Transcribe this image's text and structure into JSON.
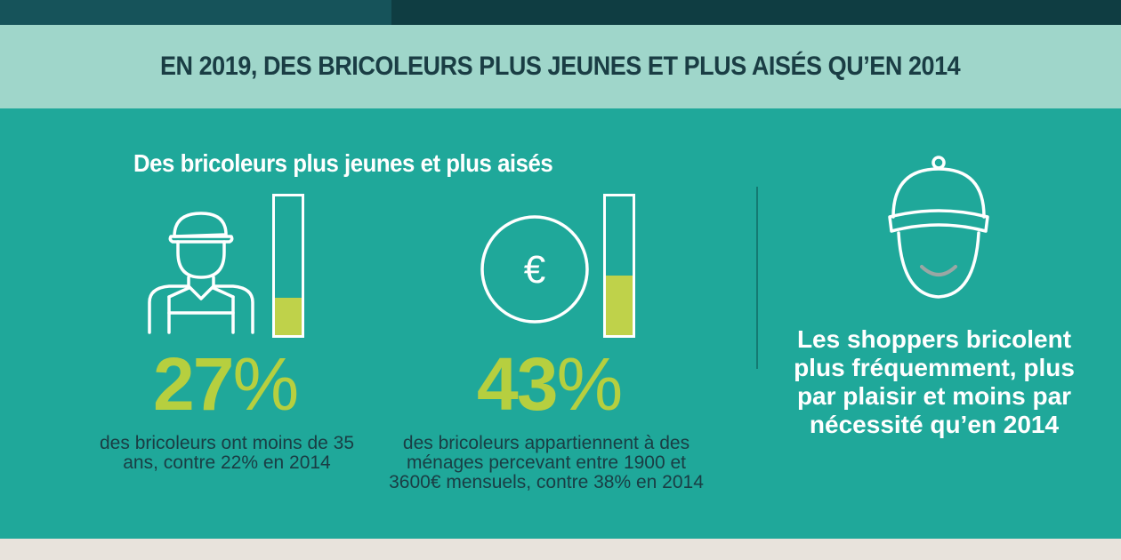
{
  "header": {
    "title": "EN 2019, DES BRICOLEURS PLUS JEUNES ET PLUS AISÉS QU’EN 2014"
  },
  "section": {
    "subtitle": "Des bricoleurs plus jeunes et plus aisés"
  },
  "stats": [
    {
      "icon": "worker-icon",
      "value": 27,
      "number": "27",
      "unit": "%",
      "description": "des bricoleurs ont moins de 35 ans, contre 22% en 2014"
    },
    {
      "icon": "euro-icon",
      "value": 43,
      "number": "43",
      "unit": "%",
      "description": "des bricoleurs appartiennent à des ménages percevant entre 1900 et 3600€ mensuels, contre 38% en 2014"
    }
  ],
  "right": {
    "icon": "smiling-face-cap-icon",
    "text": "Les shoppers bricolent plus fréquemment, plus par plaisir et moins par nécessité qu’en 2014"
  },
  "colors": {
    "accent_green": "#b6cf3f",
    "bar_fill": "#bfd24a",
    "teal": "#1fa89a",
    "dark_text": "#1a3d44",
    "title_band": "#9fd6ca"
  }
}
